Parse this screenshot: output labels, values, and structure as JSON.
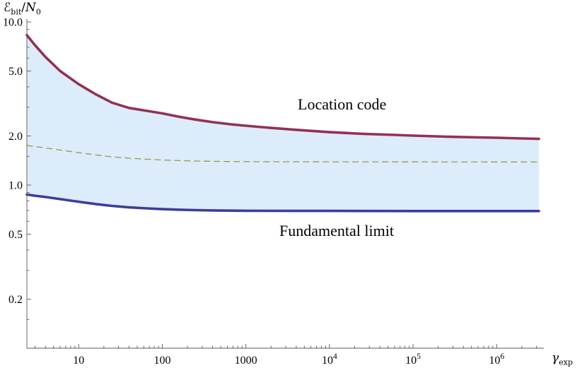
{
  "chart_data": {
    "type": "line",
    "title": "",
    "x_scale": "log",
    "y_scale": "log",
    "xlim": [
      2.4,
      3200000
    ],
    "ylim": [
      0.1,
      10.5
    ],
    "grid": false,
    "legend": "none (curves labeled by in-plot annotations)",
    "xlabel": {
      "symbol": "γ",
      "subscript": "exp"
    },
    "ylabel": {
      "symbol": "ℰ",
      "symbol_sub": "bit",
      "separator": "/",
      "denominator": "N",
      "denominator_sub": "0"
    },
    "x_major_ticks": [
      {
        "label": "10",
        "value": 10
      },
      {
        "label": "100",
        "value": 100
      },
      {
        "label": "1000",
        "value": 1000
      },
      {
        "base": "10",
        "exp": "4",
        "value": 10000
      },
      {
        "base": "10",
        "exp": "5",
        "value": 100000
      },
      {
        "base": "10",
        "exp": "6",
        "value": 1000000
      }
    ],
    "y_major_ticks": [
      {
        "label": "0.2",
        "value": 0.2
      },
      {
        "label": "0.5",
        "value": 0.5
      },
      {
        "label": "1.0",
        "value": 1.0
      },
      {
        "label": "2.0",
        "value": 2.0
      },
      {
        "label": "5.0",
        "value": 5.0
      },
      {
        "label": "10.0",
        "value": 10.0
      }
    ],
    "series": [
      {
        "id": "location_code",
        "label": "Location code",
        "style": "solid",
        "color": "#943054",
        "width": 3.6,
        "points": [
          [
            2.4,
            8.3
          ],
          [
            3,
            7.2
          ],
          [
            4,
            6.1
          ],
          [
            6,
            5.0
          ],
          [
            10,
            4.15
          ],
          [
            16,
            3.6
          ],
          [
            25,
            3.2
          ],
          [
            40,
            2.97
          ],
          [
            65,
            2.85
          ],
          [
            100,
            2.75
          ],
          [
            160,
            2.62
          ],
          [
            250,
            2.52
          ],
          [
            400,
            2.43
          ],
          [
            650,
            2.36
          ],
          [
            1000,
            2.31
          ],
          [
            2000,
            2.24
          ],
          [
            4000,
            2.18
          ],
          [
            10000,
            2.11
          ],
          [
            25000,
            2.06
          ],
          [
            60000,
            2.03
          ],
          [
            100000,
            2.01
          ],
          [
            250000,
            1.98
          ],
          [
            600000,
            1.96
          ],
          [
            1000000,
            1.95
          ],
          [
            2000000,
            1.93
          ],
          [
            3200000,
            1.92
          ]
        ]
      },
      {
        "id": "dashed_guide",
        "label": "",
        "style": "dashed",
        "color": "#99994d",
        "width": 1.3,
        "points": [
          [
            2.4,
            1.75
          ],
          [
            3,
            1.72
          ],
          [
            4,
            1.69
          ],
          [
            6,
            1.64
          ],
          [
            10,
            1.58
          ],
          [
            16,
            1.53
          ],
          [
            25,
            1.49
          ],
          [
            40,
            1.46
          ],
          [
            65,
            1.44
          ],
          [
            100,
            1.424
          ],
          [
            160,
            1.412
          ],
          [
            250,
            1.404
          ],
          [
            400,
            1.398
          ],
          [
            650,
            1.394
          ],
          [
            1000,
            1.392
          ],
          [
            2000,
            1.39
          ],
          [
            4000,
            1.389
          ],
          [
            10000,
            1.388
          ],
          [
            100000,
            1.387
          ],
          [
            1000000,
            1.386
          ],
          [
            3200000,
            1.386
          ]
        ]
      },
      {
        "id": "fundamental_limit",
        "label": "Fundamental limit",
        "style": "solid",
        "color": "#3d3d99",
        "width": 3.6,
        "points": [
          [
            2.4,
            0.875
          ],
          [
            3,
            0.86
          ],
          [
            4,
            0.845
          ],
          [
            6,
            0.82
          ],
          [
            10,
            0.79
          ],
          [
            16,
            0.765
          ],
          [
            25,
            0.745
          ],
          [
            40,
            0.73
          ],
          [
            65,
            0.72
          ],
          [
            100,
            0.712
          ],
          [
            160,
            0.706
          ],
          [
            250,
            0.702
          ],
          [
            400,
            0.699
          ],
          [
            650,
            0.697
          ],
          [
            1000,
            0.696
          ],
          [
            2000,
            0.695
          ],
          [
            4000,
            0.694
          ],
          [
            10000,
            0.694
          ],
          [
            100000,
            0.693
          ],
          [
            1000000,
            0.693
          ],
          [
            3200000,
            0.693
          ]
        ]
      }
    ],
    "fill_between": {
      "upper_series": "location_code",
      "lower_series": "fundamental_limit",
      "color": "#dcecfa"
    },
    "axis_color": "#5a5a5a",
    "background": "#ffffff"
  }
}
